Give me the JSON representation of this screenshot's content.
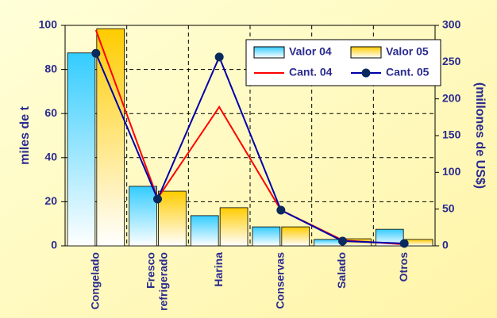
{
  "chart_data": {
    "type": "bar",
    "categories": [
      "Congelado",
      "Fresco refrigerado",
      "Harina",
      "Conservas",
      "Salado",
      "Otros"
    ],
    "series": [
      {
        "name": "Valor 04",
        "type": "bar",
        "color": "#33ccff",
        "values": [
          87.5,
          27,
          13.7,
          8.6,
          2.9,
          7.5
        ]
      },
      {
        "name": "Valor 05",
        "type": "bar",
        "color": "#ffcc00",
        "values": [
          98.5,
          24.8,
          17.3,
          8.6,
          3.2,
          2.9
        ]
      },
      {
        "name": "Cant. 04",
        "type": "line",
        "axis": "y2",
        "color": "#ff0000",
        "values": [
          293.5,
          64.7,
          189,
          48.6,
          7.6,
          2
        ]
      },
      {
        "name": "Cant. 05",
        "type": "line",
        "axis": "y2",
        "color": "#0000aa",
        "marker": true,
        "values": [
          262,
          63.7,
          257,
          48.6,
          6.5,
          3.2
        ]
      }
    ],
    "ylabel": "miles de t",
    "y2label": "(millones de US$)",
    "ylim": [
      0,
      100
    ],
    "yticks": [
      0,
      20,
      40,
      60,
      80,
      100
    ],
    "y2lim": [
      0,
      300
    ],
    "y2ticks": [
      0,
      50,
      100,
      150,
      200,
      250,
      300
    ],
    "grid": true,
    "legend": "upper right"
  }
}
